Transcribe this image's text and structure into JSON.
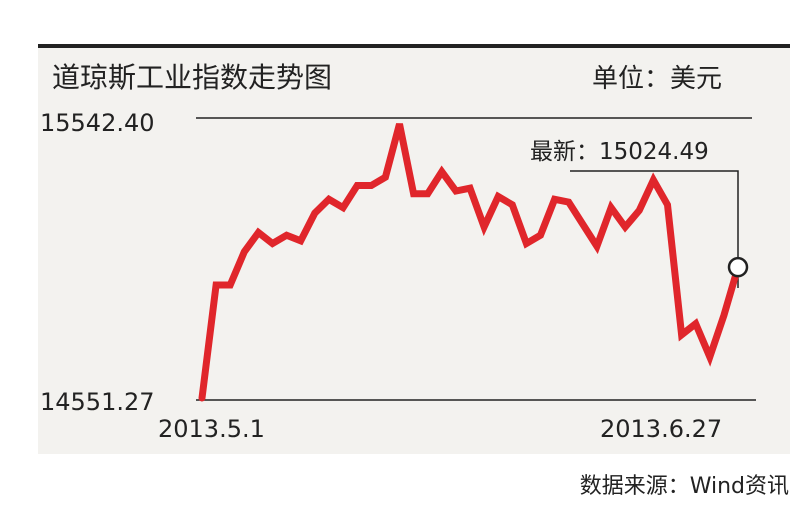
{
  "header": {
    "title": "道琼斯工业指数走势图",
    "unit": "单位：美元"
  },
  "footer": {
    "source": "数据来源：Wind资讯"
  },
  "colors": {
    "line": "#e0262b",
    "text": "#222222",
    "panel_bg": "#f3f2ef"
  },
  "chart_data": {
    "type": "line",
    "title": "道琼斯工业指数走势图",
    "unit": "单位：美元",
    "ylim": [
      14551.27,
      15542.4
    ],
    "y_tick_labels": [
      "15542.40",
      "14551.27"
    ],
    "x_tick_labels": [
      "2013.5.1",
      "2013.6.27"
    ],
    "grid": false,
    "latest_label": "最新：15024.49",
    "latest_value": 15024.49,
    "series": [
      {
        "values": [
          14551.27,
          14960,
          14960,
          15080,
          15150,
          15110,
          15140,
          15120,
          15220,
          15270,
          15240,
          15320,
          15320,
          15350,
          15542.4,
          15290,
          15290,
          15370,
          15300,
          15310,
          15170,
          15280,
          15250,
          15110,
          15140,
          15270,
          15260,
          15180,
          15100,
          15240,
          15170,
          15230,
          15340,
          15250,
          14780,
          14820,
          14700,
          14850,
          15024.49
        ]
      }
    ]
  }
}
